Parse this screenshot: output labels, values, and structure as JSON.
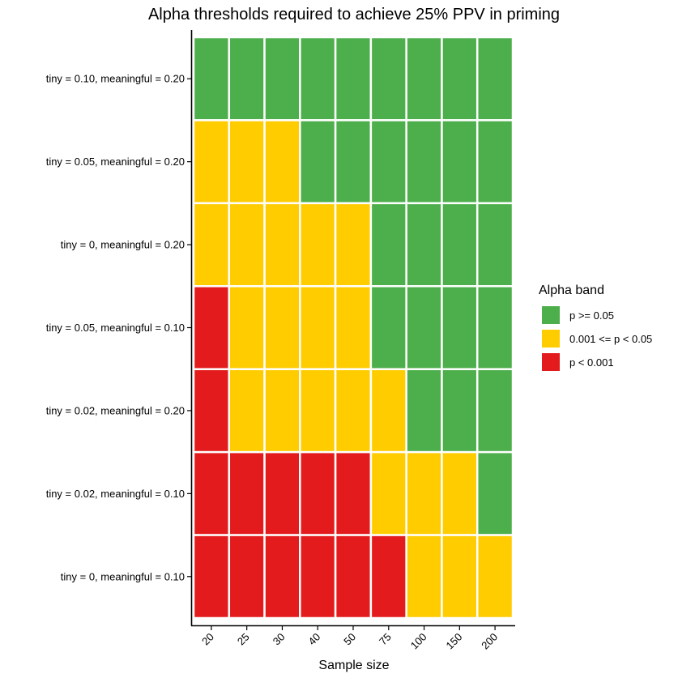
{
  "chart_data": {
    "type": "heatmap",
    "title": "Alpha thresholds required to achieve 25% PPV in priming",
    "xlabel": "Sample size",
    "ylabel": "",
    "x_categories": [
      "20",
      "25",
      "30",
      "40",
      "50",
      "75",
      "100",
      "150",
      "200"
    ],
    "y_categories": [
      "tiny = 0.10, meaningful = 0.20",
      "tiny = 0.05, meaningful = 0.20",
      "tiny = 0, meaningful = 0.20",
      "tiny = 0.05, meaningful = 0.10",
      "tiny = 0.02, meaningful = 0.20",
      "tiny = 0.02, meaningful = 0.10",
      "tiny = 0, meaningful = 0.10"
    ],
    "cells": [
      [
        "p >= 0.05",
        "p >= 0.05",
        "p >= 0.05",
        "p >= 0.05",
        "p >= 0.05",
        "p >= 0.05",
        "p >= 0.05",
        "p >= 0.05",
        "p >= 0.05"
      ],
      [
        "0.001 <= p < 0.05",
        "0.001 <= p < 0.05",
        "0.001 <= p < 0.05",
        "p >= 0.05",
        "p >= 0.05",
        "p >= 0.05",
        "p >= 0.05",
        "p >= 0.05",
        "p >= 0.05"
      ],
      [
        "0.001 <= p < 0.05",
        "0.001 <= p < 0.05",
        "0.001 <= p < 0.05",
        "0.001 <= p < 0.05",
        "0.001 <= p < 0.05",
        "p >= 0.05",
        "p >= 0.05",
        "p >= 0.05",
        "p >= 0.05"
      ],
      [
        "p < 0.001",
        "0.001 <= p < 0.05",
        "0.001 <= p < 0.05",
        "0.001 <= p < 0.05",
        "0.001 <= p < 0.05",
        "p >= 0.05",
        "p >= 0.05",
        "p >= 0.05",
        "p >= 0.05"
      ],
      [
        "p < 0.001",
        "0.001 <= p < 0.05",
        "0.001 <= p < 0.05",
        "0.001 <= p < 0.05",
        "0.001 <= p < 0.05",
        "0.001 <= p < 0.05",
        "p >= 0.05",
        "p >= 0.05",
        "p >= 0.05"
      ],
      [
        "p < 0.001",
        "p < 0.001",
        "p < 0.001",
        "p < 0.001",
        "p < 0.001",
        "0.001 <= p < 0.05",
        "0.001 <= p < 0.05",
        "0.001 <= p < 0.05",
        "p >= 0.05"
      ],
      [
        "p < 0.001",
        "p < 0.001",
        "p < 0.001",
        "p < 0.001",
        "p < 0.001",
        "p < 0.001",
        "0.001 <= p < 0.05",
        "0.001 <= p < 0.05",
        "0.001 <= p < 0.05"
      ]
    ],
    "legend": {
      "title": "Alpha band",
      "placement": "right",
      "entries": [
        {
          "label": "p >= 0.05",
          "color": "#4DAE4C"
        },
        {
          "label": "0.001 <= p < 0.05",
          "color": "#FFCC00"
        },
        {
          "label": "p < 0.001",
          "color": "#E31B1C"
        }
      ]
    }
  }
}
